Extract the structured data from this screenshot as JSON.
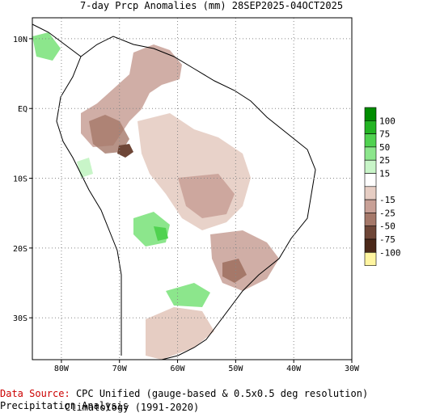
{
  "title": "7-day Prcp Anomalies (mm) 28SEP2025-04OCT2025",
  "source": {
    "label": "Data Source:",
    "line1": "CPC Unified (gauge-based & 0.5x0.5 deg resolution) Precipitation Analysis",
    "line2": "Climatology (1991-2020)"
  },
  "map": {
    "lon_range": [
      -85,
      -30
    ],
    "lat_range": [
      -36,
      13
    ],
    "x_ticks": [
      {
        "lon": -80,
        "label": "80W"
      },
      {
        "lon": -70,
        "label": "70W"
      },
      {
        "lon": -60,
        "label": "60W"
      },
      {
        "lon": -50,
        "label": "50W"
      },
      {
        "lon": -40,
        "label": "40W"
      },
      {
        "lon": -30,
        "label": "30W"
      }
    ],
    "y_ticks": [
      {
        "lat": 10,
        "label": "10N"
      },
      {
        "lat": 0,
        "label": "EQ"
      },
      {
        "lat": -10,
        "label": "10S"
      },
      {
        "lat": -20,
        "label": "20S"
      },
      {
        "lat": -30,
        "label": "30S"
      }
    ],
    "grid": true
  },
  "legend": {
    "items": [
      {
        "label": "100",
        "color": "#008c00"
      },
      {
        "label": "75",
        "color": "#23b423"
      },
      {
        "label": "50",
        "color": "#50d250"
      },
      {
        "label": "25",
        "color": "#8ce68c"
      },
      {
        "label": "15",
        "color": "#c8f5c8"
      },
      {
        "label": "",
        "color": "#ffffff"
      },
      {
        "label": "-15",
        "color": "#e6cdc3"
      },
      {
        "label": "-25",
        "color": "#c8a096"
      },
      {
        "label": "-50",
        "color": "#a57869"
      },
      {
        "label": "-75",
        "color": "#6e4637"
      },
      {
        "label": "-100",
        "color": "#4b2819"
      },
      {
        "label": "",
        "color": "#fff5a0"
      }
    ]
  },
  "colors": {
    "coast": "#000000",
    "grid": "#888888"
  }
}
